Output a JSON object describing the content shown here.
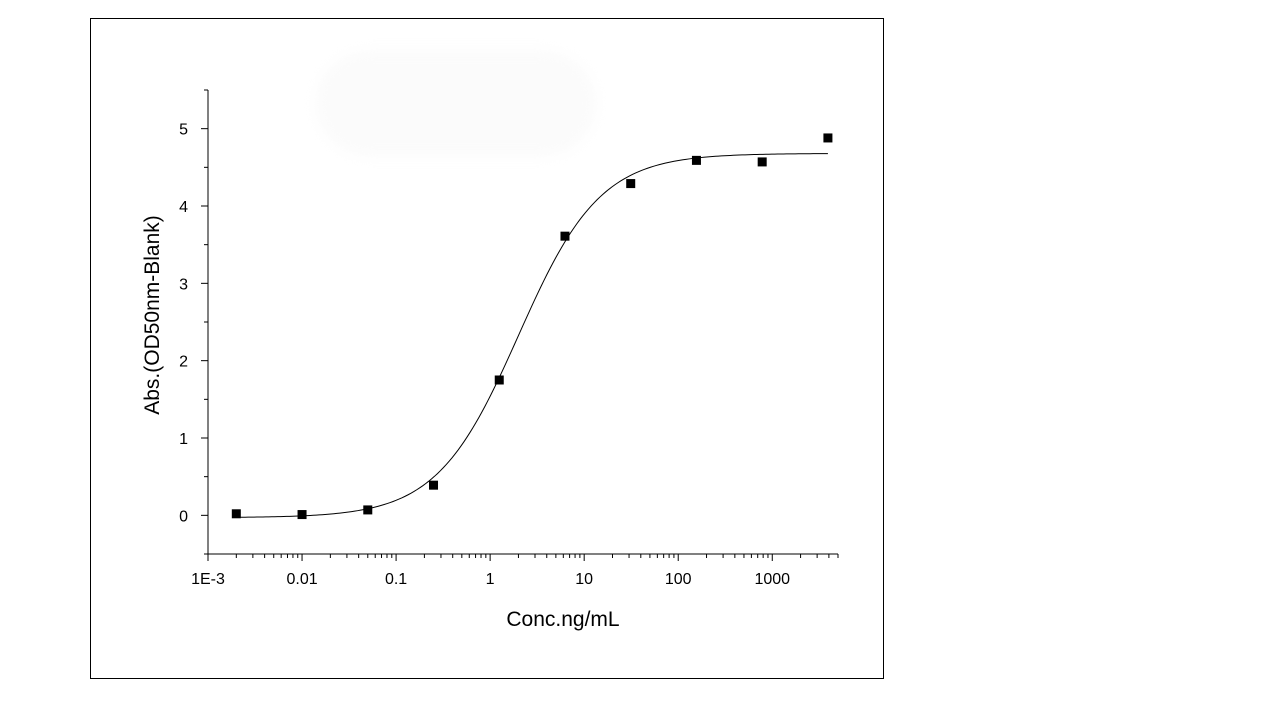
{
  "chart_data": {
    "type": "scatter",
    "title": "",
    "xlabel": "Conc.ng/mL",
    "ylabel": "Abs.(OD50nm-Blank)",
    "x_scale": "log",
    "xlim": [
      0.001,
      5000
    ],
    "ylim": [
      -0.5,
      5.5
    ],
    "x_ticks": [
      {
        "value": 0.001,
        "label": "1E-3"
      },
      {
        "value": 0.01,
        "label": "0.01"
      },
      {
        "value": 0.1,
        "label": "0.1"
      },
      {
        "value": 1,
        "label": "1"
      },
      {
        "value": 10,
        "label": "10"
      },
      {
        "value": 100,
        "label": "100"
      },
      {
        "value": 1000,
        "label": "1000"
      }
    ],
    "y_ticks": [
      {
        "value": 0,
        "label": "0"
      },
      {
        "value": 1,
        "label": "1"
      },
      {
        "value": 2,
        "label": "2"
      },
      {
        "value": 3,
        "label": "3"
      },
      {
        "value": 4,
        "label": "4"
      },
      {
        "value": 5,
        "label": "5"
      }
    ],
    "grid": false,
    "points": [
      {
        "x": 0.002,
        "y": 0.02
      },
      {
        "x": 0.01,
        "y": 0.01
      },
      {
        "x": 0.05,
        "y": 0.07
      },
      {
        "x": 0.25,
        "y": 0.39
      },
      {
        "x": 1.25,
        "y": 1.75
      },
      {
        "x": 6.25,
        "y": 3.61
      },
      {
        "x": 31.25,
        "y": 4.29
      },
      {
        "x": 156.25,
        "y": 4.59
      },
      {
        "x": 781.25,
        "y": 4.57
      },
      {
        "x": 3906.25,
        "y": 4.88
      }
    ],
    "fit_curve": {
      "model": "4PL",
      "bottom": -0.03,
      "top": 4.68,
      "ec50": 2.0,
      "hill": 1.0
    },
    "colors": {
      "marker": "#000000",
      "line": "#000000",
      "axis": "#000000"
    }
  }
}
